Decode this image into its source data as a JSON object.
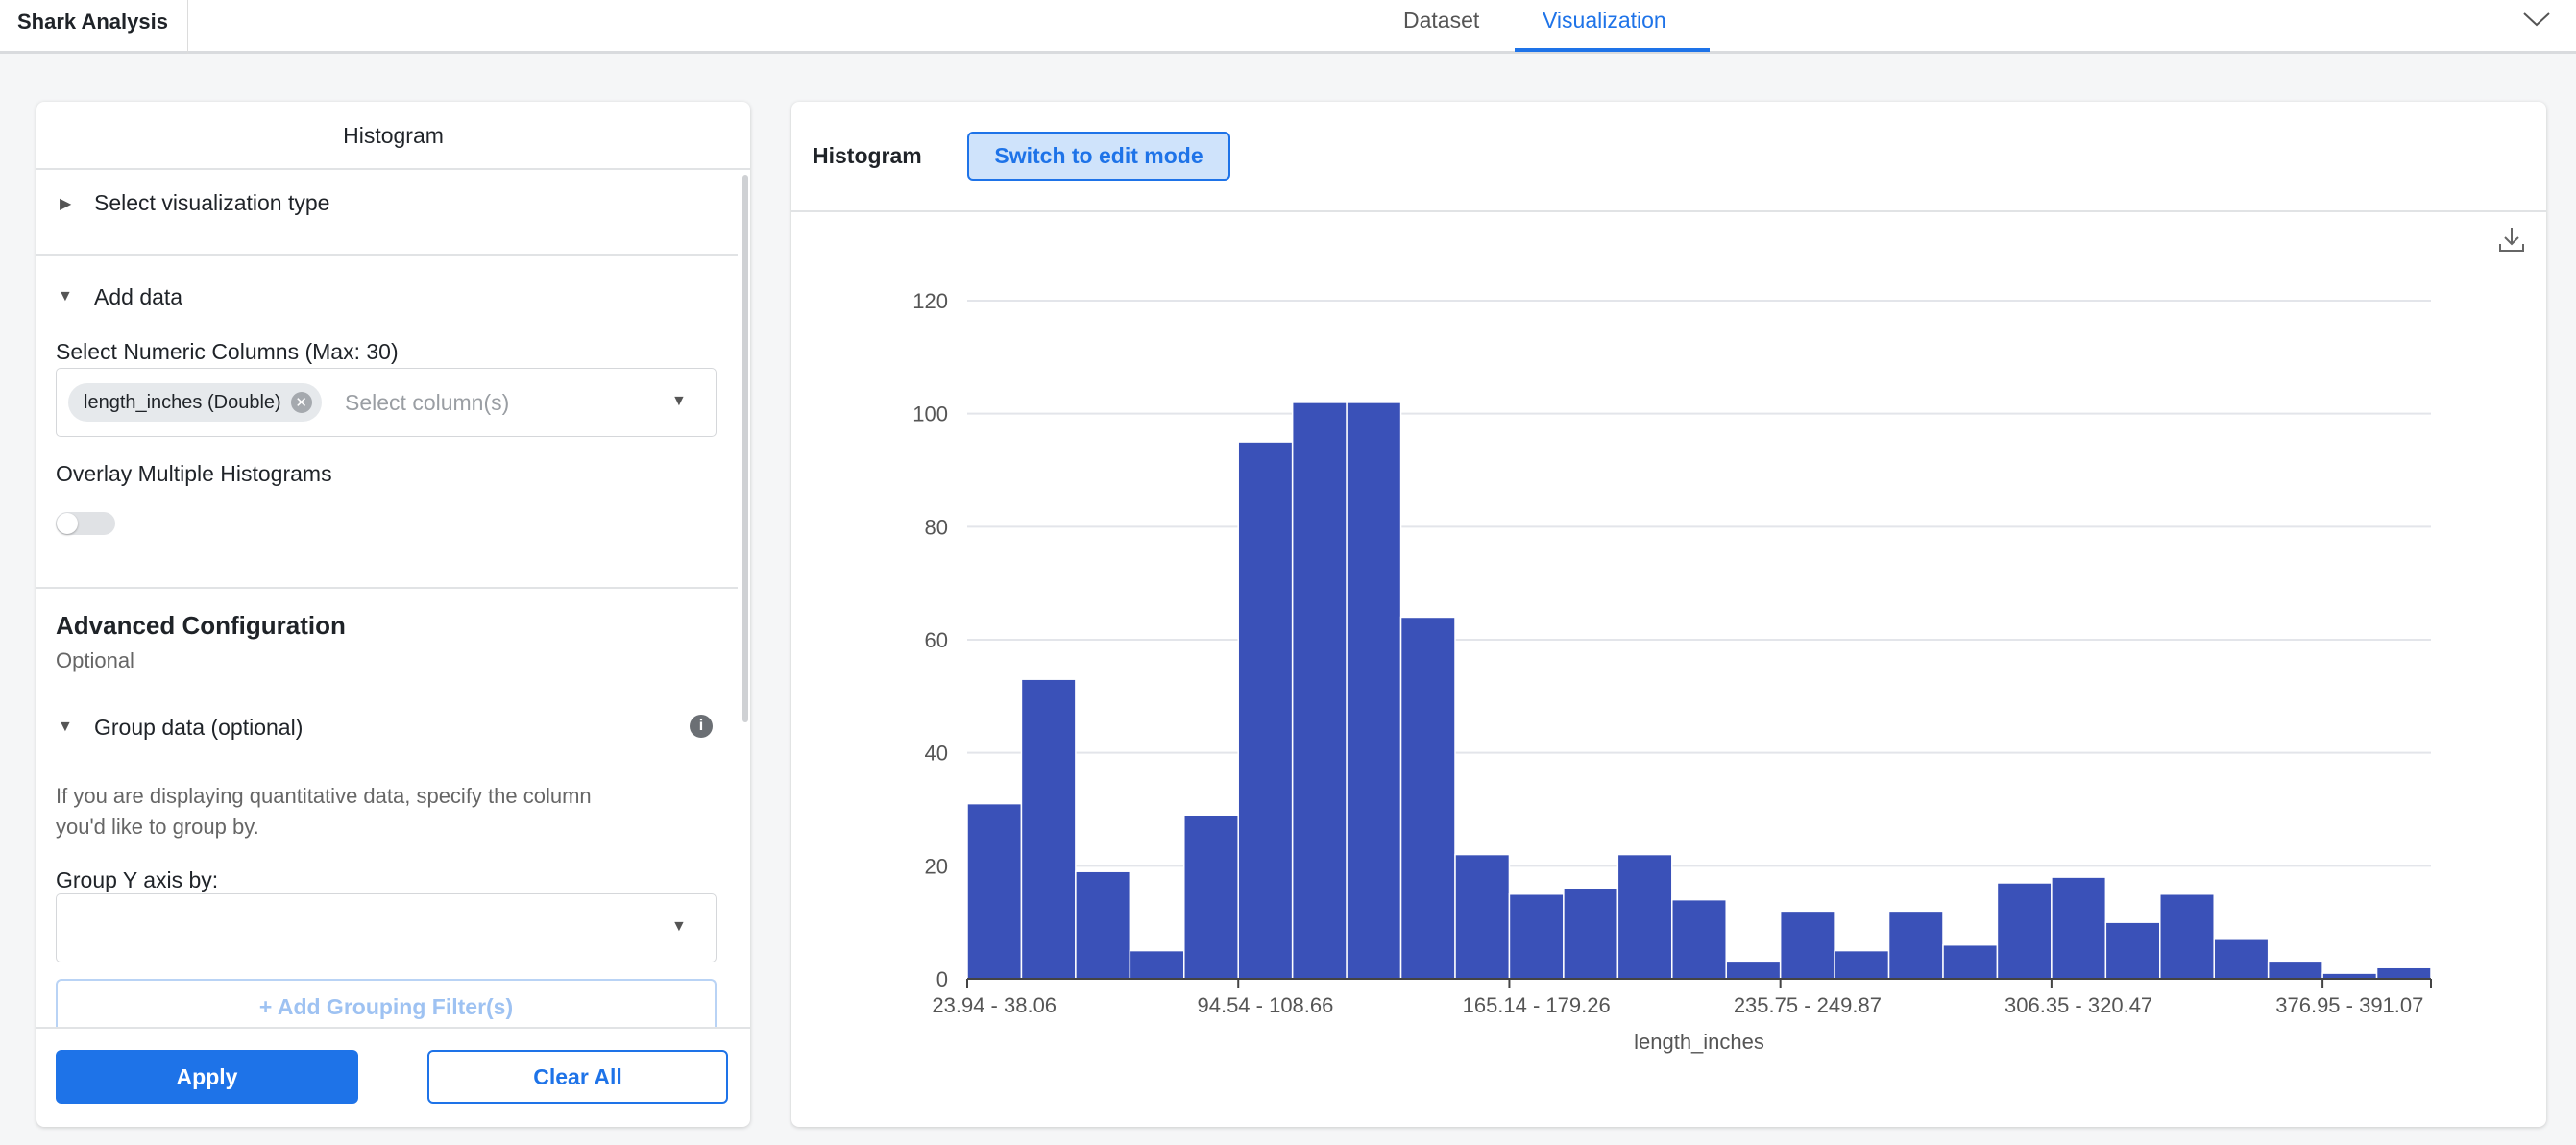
{
  "app": {
    "title": "Shark Analysis"
  },
  "tabs": [
    {
      "label": "Dataset"
    },
    {
      "label": "Visualization",
      "active": true
    }
  ],
  "config": {
    "title": "Histogram",
    "viz_type_label": "Select visualization type",
    "add_data_label": "Add data",
    "numeric_columns_label": "Select Numeric Columns (Max: 30)",
    "selected_chip": "length_inches (Double)",
    "columns_placeholder": "Select column(s)",
    "overlay_label": "Overlay Multiple Histograms",
    "overlay_on": false,
    "advanced_title": "Advanced Configuration",
    "advanced_sub": "Optional",
    "group_label": "Group data (optional)",
    "group_help_1": "If you are displaying quantitative data, specify the column",
    "group_help_2": "you'd like to group by.",
    "group_y_label": "Group Y axis by:",
    "group_y_value": "",
    "add_filter": "+ Add Grouping Filter(s)",
    "apply": "Apply",
    "clear": "Clear All"
  },
  "viz": {
    "title": "Histogram",
    "edit_button": "Switch to edit mode"
  },
  "colors": {
    "accent": "#1e73e8",
    "bar": "#3a51b8"
  },
  "chart_data": {
    "type": "bar",
    "title": "",
    "xlabel": "length_inches",
    "ylabel": "",
    "ylim": [
      0,
      120
    ],
    "yticks": [
      "0",
      "20",
      "40",
      "60",
      "80",
      "100",
      "120"
    ],
    "grid": true,
    "bin_width": 14.12,
    "x_start": 23.94,
    "xtick_labels": [
      "23.94 - 38.06",
      "94.54 - 108.66",
      "165.14 - 179.26",
      "235.75 - 249.87",
      "306.35 - 320.47",
      "376.95 - 391.07"
    ],
    "xtick_bins": [
      0,
      5,
      10,
      15,
      20,
      25
    ],
    "values": [
      31,
      53,
      19,
      5,
      29,
      95,
      102,
      102,
      64,
      22,
      15,
      16,
      22,
      14,
      3,
      12,
      5,
      12,
      6,
      17,
      18,
      10,
      15,
      7,
      3,
      1,
      2
    ]
  }
}
